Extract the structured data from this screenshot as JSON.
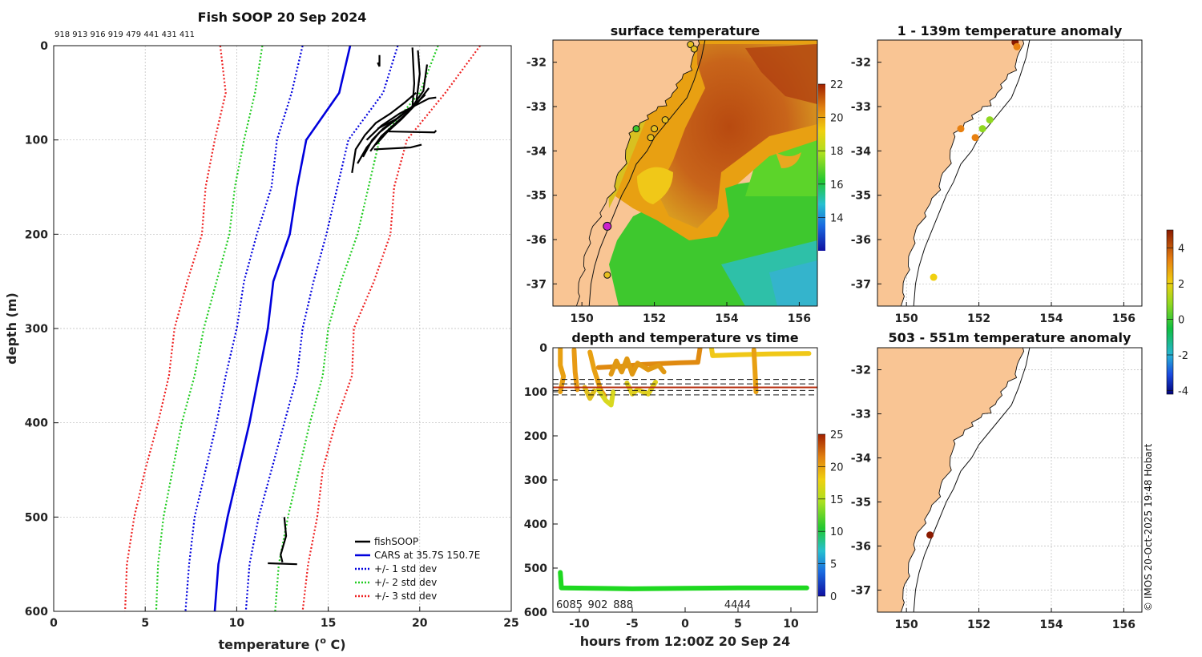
{
  "chart_data": [
    {
      "type": "line",
      "id": "profile",
      "title": "Fish SOOP 20 Sep 2024",
      "top_ids": "918 913 916 919 479 441 431 411",
      "xlabel": "temperature (",
      "xlabel_sup": "o",
      "xlabel_tail": " C)",
      "ylabel": "depth (m)",
      "xlim": [
        0,
        25
      ],
      "ylim": [
        600,
        0
      ],
      "xticks": [
        "0",
        "5",
        "10",
        "15",
        "20",
        "25"
      ],
      "yticks": [
        "0",
        "100",
        "200",
        "300",
        "400",
        "500",
        "600"
      ],
      "depths": [
        0,
        50,
        100,
        150,
        200,
        250,
        300,
        350,
        400,
        450,
        500,
        550,
        600
      ],
      "series": [
        {
          "name": "CARS at 35.7S 150.7E",
          "color": "#0000dd",
          "style": "solid",
          "values": [
            16.2,
            15.6,
            13.8,
            13.3,
            12.9,
            12.0,
            11.7,
            11.2,
            10.7,
            10.1,
            9.5,
            9.0,
            8.8
          ]
        },
        {
          "name": "+/- 1 std dev",
          "color": "#0000dd",
          "style": "dot",
          "values": [
            18.8,
            18.0,
            16.1,
            15.5,
            14.9,
            14.2,
            13.6,
            13.3,
            12.6,
            11.9,
            11.2,
            10.7,
            10.5
          ]
        },
        {
          "name": "",
          "color": "#0000dd",
          "style": "dot",
          "values": [
            13.6,
            13.0,
            12.2,
            11.9,
            11.1,
            10.4,
            10.0,
            9.4,
            8.9,
            8.3,
            7.7,
            7.4,
            7.2
          ]
        },
        {
          "name": "+/- 2 std dev",
          "color": "#22cc22",
          "style": "dot",
          "values": [
            21.0,
            20.0,
            17.8,
            17.2,
            16.6,
            15.7,
            15.0,
            14.7,
            14.0,
            13.4,
            12.8,
            12.3,
            12.1
          ]
        },
        {
          "name": "",
          "color": "#22cc22",
          "style": "dot",
          "values": [
            11.4,
            11.0,
            10.4,
            9.9,
            9.6,
            8.9,
            8.2,
            7.7,
            7.0,
            6.5,
            6.0,
            5.7,
            5.6
          ]
        },
        {
          "name": "+/- 3 std dev",
          "color": "#ee2222",
          "style": "dot",
          "values": [
            23.3,
            21.4,
            19.3,
            18.6,
            18.4,
            17.5,
            16.4,
            16.3,
            15.4,
            14.7,
            14.4,
            13.9,
            13.6
          ]
        },
        {
          "name": "",
          "color": "#ee2222",
          "style": "dot",
          "values": [
            9.1,
            9.4,
            8.8,
            8.3,
            8.1,
            7.3,
            6.6,
            6.3,
            5.7,
            5.0,
            4.4,
            4.0,
            3.9
          ]
        }
      ],
      "fishsoop_name": "fishSOOP",
      "fishsoop_color": "#000000",
      "fishsoop_traces": [
        [
          [
            16.3,
            135
          ],
          [
            16.5,
            110
          ],
          [
            17.0,
            95
          ],
          [
            17.6,
            82
          ],
          [
            18.4,
            72
          ],
          [
            19.2,
            60
          ],
          [
            19.8,
            50
          ]
        ],
        [
          [
            16.6,
            125
          ],
          [
            17.1,
            108
          ],
          [
            17.8,
            92
          ],
          [
            18.6,
            80
          ],
          [
            19.6,
            65
          ],
          [
            20.3,
            52
          ]
        ],
        [
          [
            16.9,
            118
          ],
          [
            17.4,
            100
          ],
          [
            18.0,
            88
          ],
          [
            18.9,
            75
          ],
          [
            19.9,
            60
          ],
          [
            20.5,
            45
          ]
        ],
        [
          [
            17.3,
            112
          ],
          [
            17.9,
            96
          ],
          [
            18.7,
            82
          ],
          [
            19.4,
            70
          ],
          [
            20.2,
            48
          ],
          [
            20.4,
            20
          ]
        ],
        [
          [
            17.6,
            105
          ],
          [
            18.2,
            92
          ],
          [
            19.0,
            78
          ],
          [
            19.8,
            62
          ],
          [
            20.0,
            30
          ],
          [
            19.9,
            5
          ]
        ],
        [
          [
            17.5,
            110
          ],
          [
            19.5,
            108
          ],
          [
            20.1,
            105
          ]
        ],
        [
          [
            18.3,
            91
          ],
          [
            20.8,
            92
          ],
          [
            20.9,
            90
          ]
        ],
        [
          [
            17.7,
            88
          ],
          [
            18.8,
            77
          ],
          [
            19.6,
            65
          ],
          [
            19.7,
            40
          ],
          [
            19.6,
            2
          ]
        ],
        [
          [
            17.1,
            100
          ],
          [
            17.9,
            85
          ],
          [
            18.9,
            72
          ],
          [
            20.5,
            56
          ],
          [
            20.9,
            55
          ]
        ],
        [
          [
            17.8,
            10
          ],
          [
            17.8,
            22
          ],
          [
            17.7,
            18
          ]
        ],
        [
          [
            12.6,
            500
          ],
          [
            12.7,
            520
          ],
          [
            12.4,
            540
          ],
          [
            12.5,
            548
          ]
        ],
        [
          [
            11.7,
            549
          ],
          [
            13.3,
            550
          ]
        ]
      ],
      "legend": [
        "fishSOOP",
        "CARS at 35.7S 150.7E",
        "+/- 1 std dev",
        "+/- 2 std dev",
        "+/- 3 std dev"
      ]
    },
    {
      "type": "heatmap",
      "id": "sst_map",
      "title": "surface temperature",
      "xlim": [
        149.2,
        156.5
      ],
      "ylim": [
        -37.5,
        -31.5
      ],
      "xticks": [
        "150",
        "152",
        "154",
        "156"
      ],
      "yticks": [
        "-32",
        "-33",
        "-34",
        "-35",
        "-36",
        "-37"
      ],
      "colorbar_range": [
        12,
        22
      ],
      "colorbar_ticks": [
        "14",
        "16",
        "18",
        "20",
        "22"
      ],
      "track_points": [
        [
          151.5,
          -33.5
        ],
        [
          151.9,
          -33.7
        ],
        [
          152.0,
          -33.5
        ],
        [
          152.3,
          -33.3
        ],
        [
          153.0,
          -31.6
        ],
        [
          153.1,
          -31.7
        ],
        [
          150.7,
          -36.8
        ]
      ],
      "highlight_point": [
        150.7,
        -35.7
      ]
    },
    {
      "type": "scatter",
      "id": "time_depth",
      "title": "depth and temperature vs time",
      "xlabel": "hours from 12:00Z 20 Sep 24",
      "xlim": [
        -12.5,
        12.5
      ],
      "ylim": [
        600,
        0
      ],
      "xticks": [
        "-10",
        "-5",
        "0",
        "5",
        "10"
      ],
      "yticks": [
        "0",
        "100",
        "200",
        "300",
        "400",
        "500",
        "600"
      ],
      "colorbar_range": [
        0,
        25
      ],
      "colorbar_ticks": [
        "0",
        "5",
        "10",
        "15",
        "20",
        "25"
      ],
      "dashed_depths": [
        72,
        82,
        97,
        107
      ],
      "red_line_depth": 90,
      "id_labels": [
        "6085",
        "902",
        "888",
        "4444"
      ]
    },
    {
      "type": "scatter",
      "id": "anom_shallow",
      "title": "1 - 139m temperature anomaly",
      "xlim": [
        149.2,
        156.5
      ],
      "ylim": [
        -37.5,
        -31.5
      ],
      "xticks": [
        "150",
        "152",
        "154",
        "156"
      ],
      "yticks": [
        "-32",
        "-33",
        "-34",
        "-35",
        "-36",
        "-37"
      ],
      "points": [
        {
          "lon": 151.5,
          "lat": -33.5,
          "anom": 2.5
        },
        {
          "lon": 151.9,
          "lat": -33.7,
          "anom": 2.3
        },
        {
          "lon": 152.1,
          "lat": -33.5,
          "anom": 1.0
        },
        {
          "lon": 152.3,
          "lat": -33.3,
          "anom": 0.4
        },
        {
          "lon": 153.0,
          "lat": -31.55,
          "anom": 3.6
        },
        {
          "lon": 153.05,
          "lat": -31.65,
          "anom": 2.6
        },
        {
          "lon": 150.75,
          "lat": -36.85,
          "anom": 1.1
        }
      ]
    },
    {
      "type": "scatter",
      "id": "anom_deep",
      "title": "503 - 551m temperature anomaly",
      "xlim": [
        149.2,
        156.5
      ],
      "ylim": [
        -37.5,
        -31.5
      ],
      "xticks": [
        "150",
        "152",
        "154",
        "156"
      ],
      "yticks": [
        "-32",
        "-33",
        "-34",
        "-35",
        "-36",
        "-37"
      ],
      "points": [
        {
          "lon": 150.65,
          "lat": -35.75,
          "anom": 3.6
        }
      ]
    },
    {
      "type": "heatmap",
      "id": "anom_colorbar",
      "colorbar_range": [
        -4.2,
        5
      ],
      "colorbar_ticks": [
        "-4",
        "-2",
        "0",
        "2",
        "4"
      ]
    }
  ],
  "credit": "© IMOS 20-Oct-2025 19:48 Hobart",
  "colors": {
    "land": "#f9c594"
  }
}
